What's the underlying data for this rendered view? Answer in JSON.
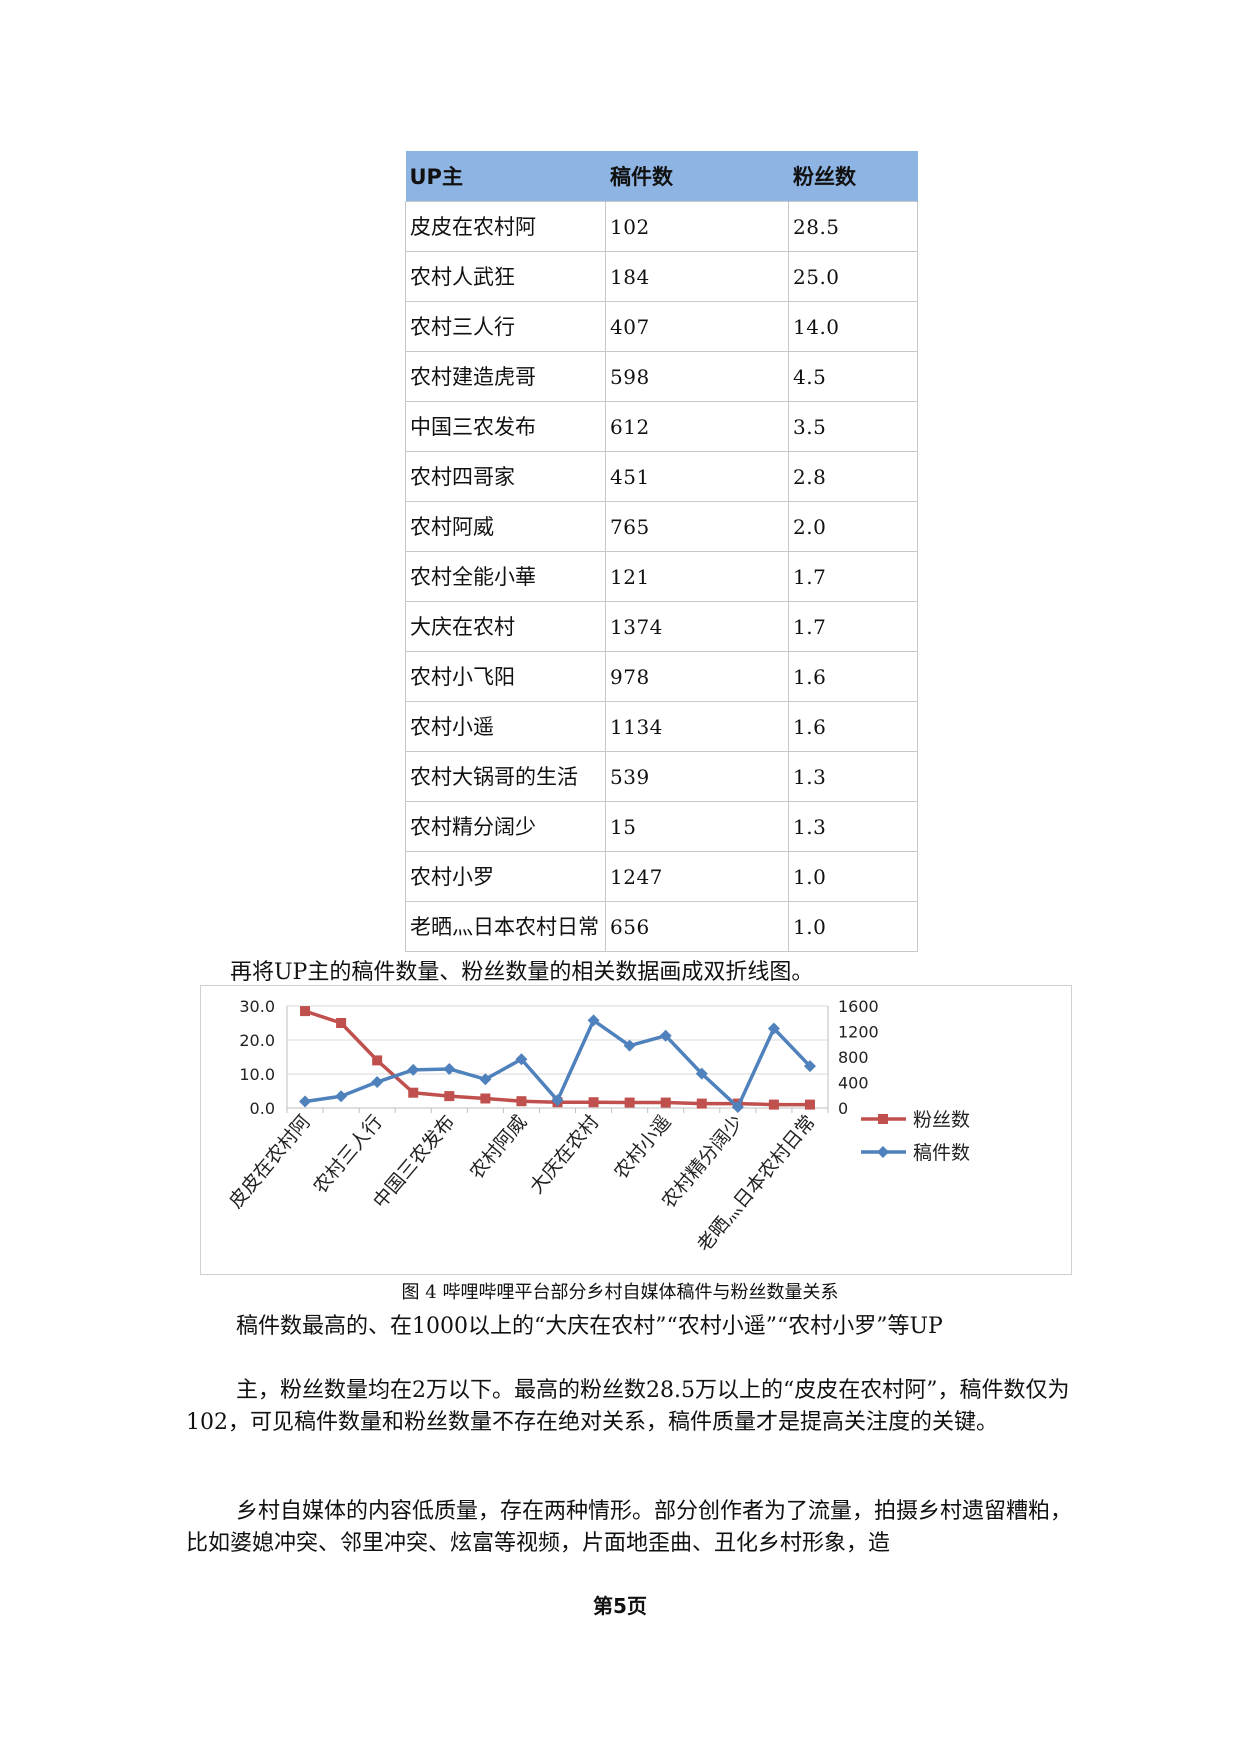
{
  "table": {
    "headers": [
      "UP主",
      "稿件数",
      "粉丝数"
    ],
    "rows": [
      [
        "皮皮在农村阿",
        "102",
        "28.5"
      ],
      [
        "农村人武狂",
        "184",
        "25.0"
      ],
      [
        "农村三人行",
        "407",
        "14.0"
      ],
      [
        "农村建造虎哥",
        "598",
        "4.5"
      ],
      [
        "中国三农发布",
        "612",
        "3.5"
      ],
      [
        "农村四哥家",
        "451",
        "2.8"
      ],
      [
        "农村阿威",
        "765",
        "2.0"
      ],
      [
        "农村全能小華",
        "121",
        "1.7"
      ],
      [
        "大庆在农村",
        "1374",
        "1.7"
      ],
      [
        "农村小飞阳",
        "978",
        "1.6"
      ],
      [
        "农村小遥",
        "1134",
        "1.6"
      ],
      [
        "农村大锅哥的生活",
        "539",
        "1.3"
      ],
      [
        "农村精分阔少",
        "15",
        "1.3"
      ],
      [
        "农村小罗",
        "1247",
        "1.0"
      ],
      [
        "老晒灬日本农村日常",
        "656",
        "1.0"
      ]
    ]
  },
  "intro_text": "再将UP主的稿件数量、粉丝数量的相关数据画成双折线图。",
  "chart_data": {
    "type": "line",
    "categories": [
      "皮皮在农村阿",
      "农村人武狂",
      "农村三人行",
      "农村建造虎哥",
      "中国三农发布",
      "农村四哥家",
      "农村阿威",
      "农村全能小華",
      "大庆在农村",
      "农村小飞阳",
      "农村小遥",
      "农村大锅哥的生活",
      "农村精分阔少",
      "农村小罗",
      "老晒灬日本农村日常"
    ],
    "visible_category_labels": [
      "皮皮在农村阿",
      "农村三人行",
      "中国三农发布",
      "农村阿威",
      "大庆在农村",
      "农村小遥",
      "农村精分阔少",
      "老晒灬日本农村日常"
    ],
    "series": [
      {
        "name": "粉丝数",
        "axis": "left",
        "color": "#c0504d",
        "marker": "square",
        "values": [
          28.5,
          25.0,
          14.0,
          4.5,
          3.5,
          2.8,
          2.0,
          1.7,
          1.7,
          1.6,
          1.6,
          1.3,
          1.3,
          1.0,
          1.0
        ]
      },
      {
        "name": "稿件数",
        "axis": "right",
        "color": "#4f81bd",
        "marker": "diamond",
        "values": [
          102,
          184,
          407,
          598,
          612,
          451,
          765,
          121,
          1374,
          978,
          1134,
          539,
          15,
          1247,
          656
        ]
      }
    ],
    "y_left": {
      "ticks": [
        "30.0",
        "20.0",
        "10.0",
        "0.0"
      ],
      "ylim": [
        0,
        30
      ]
    },
    "y_right": {
      "ticks": [
        "1600",
        "1200",
        "800",
        "400",
        "0"
      ],
      "ylim": [
        0,
        1600
      ]
    },
    "legend_position": "right",
    "grid": true
  },
  "caption": "图 4 哔哩哔哩平台部分乡村自媒体稿件与粉丝数量关系",
  "paragraphs": [
    "稿件数最高的、在1000以上的“大庆在农村”“农村小遥”“农村小罗”等UP",
    "主，粉丝数量均在2万以下。最高的粉丝数28.5万以上的“皮皮在农村阿”，稿件数仅为102，可见稿件数量和粉丝数量不存在绝对关系，稿件质量才是提高关注度的关键。",
    "乡村自媒体的内容低质量，存在两种情形。部分创作者为了流量，拍摄乡村遗留糟粕，比如婆媳冲突、邻里冲突、炫富等视频，片面地歪曲、丑化乡村形象，造"
  ],
  "page_number": "第5页"
}
